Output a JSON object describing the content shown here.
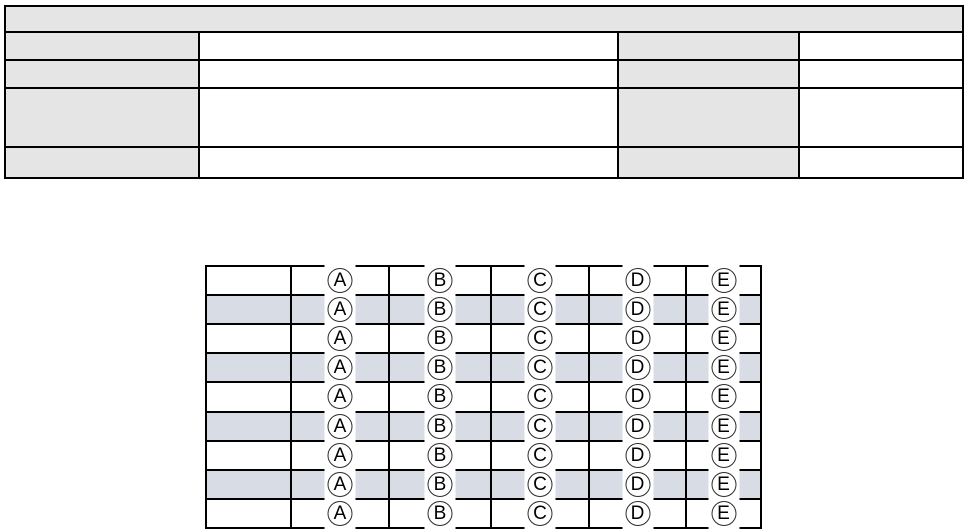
{
  "document": {
    "background": "#ffffff"
  },
  "form_table": {
    "banner_text": "",
    "rows": [
      {
        "label": "",
        "value": "",
        "label2": "",
        "value2": ""
      },
      {
        "label": "",
        "value": "",
        "label2": "",
        "value2": ""
      },
      {
        "label": "",
        "value": "",
        "label2": "",
        "value2": ""
      },
      {
        "label": "",
        "value": "",
        "label2": "",
        "value2": ""
      }
    ],
    "colors": {
      "banner_fill": "#e5e5e5",
      "label_fill": "#e5e5e5",
      "field_fill": "#ffffff",
      "border": "#000000"
    }
  },
  "answer_sheet": {
    "options": [
      "A",
      "B",
      "C",
      "D",
      "E"
    ],
    "rows": [
      "",
      "",
      "",
      "",
      "",
      "",
      "",
      "",
      ""
    ],
    "colors": {
      "stripe_fill": "#d7dce5",
      "row_fill": "#ffffff",
      "border": "#000000",
      "bubble_outline": "#2b2b2b",
      "bubble_fill": "#ffffff"
    }
  }
}
